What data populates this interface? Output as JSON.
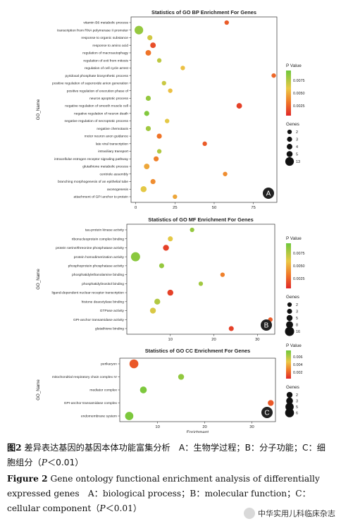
{
  "chart_data": [
    {
      "type": "scatter",
      "title": "Statistics of GO BP Enrichment For Genes",
      "xlabel": "Enrichment",
      "ylabel": "GO_Name",
      "xlim": [
        -3,
        90
      ],
      "xticks": [
        "0",
        "25",
        "50",
        "75"
      ],
      "panel_label": "A",
      "legend_color_title": "P Value",
      "legend_color_ticks": [
        "0.0075",
        "0.0050",
        "0.0025"
      ],
      "pvalue_range": [
        0.0,
        0.0095
      ],
      "legend_size_title": "Genes",
      "legend_size_values": [
        "2",
        "3",
        "4",
        "5",
        "13"
      ],
      "categories": [
        "vitamin B6 metabolic process",
        "transcription from RNA polymerase II promoter",
        "response to organic substance",
        "response to amino acid",
        "regulation of macroautophagy",
        "regulation of exit from mitosis",
        "regulation of cell cycle arrest",
        "pyridoxal phosphate biosynthetic process",
        "positive regulation of superoxide anion generation",
        "positive regulation of execution phase of",
        "neuron apoptotic process",
        "negative regulation of smooth muscle cell",
        "negative regulation of neuron death",
        "negative regulation of necroptotic process",
        "negative chemotaxis",
        "motor neuron axon guidance",
        "late viral transcription",
        "intraciliary transport",
        "intracellular estrogen receptor signaling pathway",
        "glutathione metabolic process",
        "centriole assembly",
        "branching morphogenesis of an epithelial tube",
        "axonogenesis",
        "attachment of GPI anchor to protein"
      ],
      "points": [
        {
          "x": 58,
          "genes": 2,
          "p": 0.002
        },
        {
          "x": 2,
          "genes": 13,
          "p": 0.0085
        },
        {
          "x": 9,
          "genes": 3,
          "p": 0.007
        },
        {
          "x": 11,
          "genes": 4,
          "p": 0.0015
        },
        {
          "x": 8,
          "genes": 4,
          "p": 0.003
        },
        {
          "x": 15,
          "genes": 2,
          "p": 0.0075
        },
        {
          "x": 30,
          "genes": 2,
          "p": 0.006
        },
        {
          "x": 88,
          "genes": 2,
          "p": 0.0025
        },
        {
          "x": 18,
          "genes": 2,
          "p": 0.0072
        },
        {
          "x": 22,
          "genes": 2,
          "p": 0.006
        },
        {
          "x": 8,
          "genes": 3,
          "p": 0.0085
        },
        {
          "x": 66,
          "genes": 4,
          "p": 0.001
        },
        {
          "x": 7,
          "genes": 3,
          "p": 0.009
        },
        {
          "x": 20,
          "genes": 2,
          "p": 0.0065
        },
        {
          "x": 8,
          "genes": 3,
          "p": 0.0082
        },
        {
          "x": 15,
          "genes": 3,
          "p": 0.003
        },
        {
          "x": 44,
          "genes": 2,
          "p": 0.002
        },
        {
          "x": 15,
          "genes": 2,
          "p": 0.0078
        },
        {
          "x": 13,
          "genes": 3,
          "p": 0.0035
        },
        {
          "x": 7,
          "genes": 4,
          "p": 0.005
        },
        {
          "x": 57,
          "genes": 2,
          "p": 0.004
        },
        {
          "x": 11,
          "genes": 3,
          "p": 0.004
        },
        {
          "x": 5,
          "genes": 5,
          "p": 0.0065
        },
        {
          "x": 25,
          "genes": 2,
          "p": 0.005
        }
      ]
    },
    {
      "type": "scatter",
      "title": "Statistics of GO MF Enrichment For Genes",
      "xlabel": "Enrichment",
      "ylabel": "GO_Name",
      "xlim": [
        0,
        34
      ],
      "xticks": [
        "10",
        "20",
        "30"
      ],
      "panel_label": "B",
      "legend_color_title": "P Value",
      "legend_color_ticks": [
        "0.0075",
        "0.0050",
        "0.0025"
      ],
      "pvalue_range": [
        0.0,
        0.0095
      ],
      "legend_size_title": "Genes",
      "legend_size_values": [
        "2",
        "3",
        "5",
        "8",
        "16"
      ],
      "categories": [
        "tau-protein kinase activity",
        "ribonucleoprotein complex binding",
        "protein serine/threonine phosphatase activity",
        "protein homodimerization activity",
        "phosphoprotein phosphatase activity",
        "phosphatidylethanolamine binding",
        "phosphatidylinositol binding",
        "ligand-dependent nuclear receptor transcription",
        "histone deacetylase binding",
        "GTPase activity",
        "GPI-anchor transamidase activity",
        "glutathione binding"
      ],
      "points": [
        {
          "x": 15,
          "genes": 2,
          "p": 0.0085
        },
        {
          "x": 10,
          "genes": 3,
          "p": 0.0065
        },
        {
          "x": 9,
          "genes": 5,
          "p": 0.001
        },
        {
          "x": 2,
          "genes": 16,
          "p": 0.0088
        },
        {
          "x": 8,
          "genes": 3,
          "p": 0.0085
        },
        {
          "x": 22,
          "genes": 2,
          "p": 0.0035
        },
        {
          "x": 17,
          "genes": 2,
          "p": 0.0082
        },
        {
          "x": 10,
          "genes": 5,
          "p": 0.001
        },
        {
          "x": 7,
          "genes": 5,
          "p": 0.0078
        },
        {
          "x": 6,
          "genes": 5,
          "p": 0.0068
        },
        {
          "x": 33,
          "genes": 2,
          "p": 0.002
        },
        {
          "x": 24,
          "genes": 3,
          "p": 0.001
        }
      ]
    },
    {
      "type": "scatter",
      "title": "Statistics of GO CC Enrichment For Genes",
      "xlabel": "Enrichment",
      "ylabel": "GO_Name",
      "xlim": [
        2,
        35
      ],
      "xticks": [
        "10",
        "20",
        "30"
      ],
      "panel_label": "C",
      "legend_color_title": "P Value",
      "legend_color_ticks": [
        "0.006",
        "0.004",
        "0.002"
      ],
      "pvalue_range": [
        0.0,
        0.0075
      ],
      "legend_size_title": "Genes",
      "legend_size_values": [
        "2",
        "3",
        "5",
        "6"
      ],
      "categories": [
        "perikaryon",
        "mitochondrial respiratory chain complex IV",
        "mediator complex",
        "GPI-anchor transamidase complex",
        "endomembrane system"
      ],
      "points": [
        {
          "x": 5,
          "genes": 6,
          "p": 0.0015
        },
        {
          "x": 15,
          "genes": 2,
          "p": 0.0068
        },
        {
          "x": 7,
          "genes": 3,
          "p": 0.0072
        },
        {
          "x": 34,
          "genes": 2,
          "p": 0.0015
        },
        {
          "x": 4,
          "genes": 5,
          "p": 0.0072
        }
      ]
    }
  ],
  "caption": {
    "cn_label": "图2",
    "cn_text": "差异表达基因的基因本体功能富集分析　A：生物学过程；B：分子功能；C：细胞组分（",
    "cn_p": "P",
    "cn_end": "＜0.01）",
    "en_label": "Figure 2",
    "en_text": "Gene ontology functional enrichment analysis of differentially expressed genes　A：biological process；B：molecular function；C：cellular component（",
    "en_p": "P",
    "en_end": "＜0.01）"
  },
  "watermark": {
    "text": "中华实用儿科临床杂志",
    "icon": "wechat-icon"
  }
}
